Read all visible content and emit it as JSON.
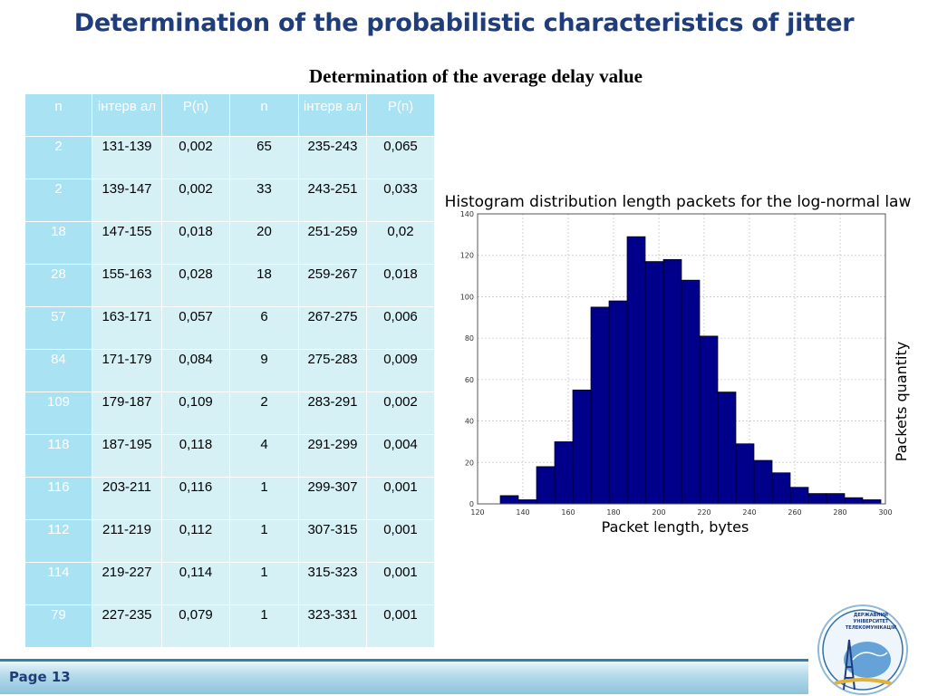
{
  "slide": {
    "title": "Determination of the probabilistic characteristics of jitter",
    "subtitle": "Determination of the average delay value",
    "page_label": "Page 13",
    "logo_text": [
      "ДЕРЖАВНИЙ",
      "УНІВЕРСИТЕТ",
      "ТЕЛЕКОМУНІКАЦІЙ"
    ]
  },
  "table": {
    "headers": [
      "n",
      "інтерв ал",
      "P(n)",
      "n",
      "інтерв ал",
      "P(n)"
    ],
    "rows": [
      [
        "2",
        "131-139",
        "0,002",
        "65",
        "235-243",
        "0,065"
      ],
      [
        "2",
        "139-147",
        "0,002",
        "33",
        "243-251",
        "0,033"
      ],
      [
        "18",
        "147-155",
        "0,018",
        "20",
        "251-259",
        "0,02"
      ],
      [
        "28",
        "155-163",
        "0,028",
        "18",
        "259-267",
        "0,018"
      ],
      [
        "57",
        "163-171",
        "0,057",
        "6",
        "267-275",
        "0,006"
      ],
      [
        "84",
        "171-179",
        "0,084",
        "9",
        "275-283",
        "0,009"
      ],
      [
        "109",
        "179-187",
        "0,109",
        "2",
        "283-291",
        "0,002"
      ],
      [
        "118",
        "187-195",
        "0,118",
        "4",
        "291-299",
        "0,004"
      ],
      [
        "116",
        "203-211",
        "0,116",
        "1",
        "299-307",
        "0,001"
      ],
      [
        "112",
        "211-219",
        "0,112",
        "1",
        "307-315",
        "0,001"
      ],
      [
        "114",
        "219-227",
        "0,114",
        "1",
        "315-323",
        "0,001"
      ],
      [
        "79",
        "227-235",
        "0,079",
        "1",
        "323-331",
        "0,001"
      ]
    ]
  },
  "chart_data": {
    "type": "bar",
    "title": "Histogram distribution length packets for the log-normal law",
    "xlabel": "Packet length, bytes",
    "ylabel": "Packets quantity",
    "xlim": [
      120,
      300
    ],
    "ylim": [
      0,
      140
    ],
    "xticks": [
      120,
      140,
      160,
      180,
      200,
      220,
      240,
      260,
      280,
      300
    ],
    "yticks": [
      0,
      20,
      40,
      60,
      80,
      100,
      120,
      140
    ],
    "grid": true,
    "bar_color": "#00008b",
    "bins": [
      {
        "x0": 130,
        "x1": 138,
        "value": 4
      },
      {
        "x0": 138,
        "x1": 146,
        "value": 2
      },
      {
        "x0": 146,
        "x1": 154,
        "value": 18
      },
      {
        "x0": 154,
        "x1": 162,
        "value": 30
      },
      {
        "x0": 162,
        "x1": 170,
        "value": 55
      },
      {
        "x0": 170,
        "x1": 178,
        "value": 95
      },
      {
        "x0": 178,
        "x1": 186,
        "value": 98
      },
      {
        "x0": 186,
        "x1": 194,
        "value": 129
      },
      {
        "x0": 194,
        "x1": 202,
        "value": 117
      },
      {
        "x0": 202,
        "x1": 210,
        "value": 118
      },
      {
        "x0": 210,
        "x1": 218,
        "value": 108
      },
      {
        "x0": 218,
        "x1": 226,
        "value": 81
      },
      {
        "x0": 226,
        "x1": 234,
        "value": 54
      },
      {
        "x0": 234,
        "x1": 242,
        "value": 29
      },
      {
        "x0": 242,
        "x1": 250,
        "value": 21
      },
      {
        "x0": 250,
        "x1": 258,
        "value": 15
      },
      {
        "x0": 258,
        "x1": 266,
        "value": 8
      },
      {
        "x0": 266,
        "x1": 274,
        "value": 5
      },
      {
        "x0": 274,
        "x1": 282,
        "value": 5
      },
      {
        "x0": 282,
        "x1": 290,
        "value": 3
      },
      {
        "x0": 290,
        "x1": 298,
        "value": 2
      }
    ]
  }
}
